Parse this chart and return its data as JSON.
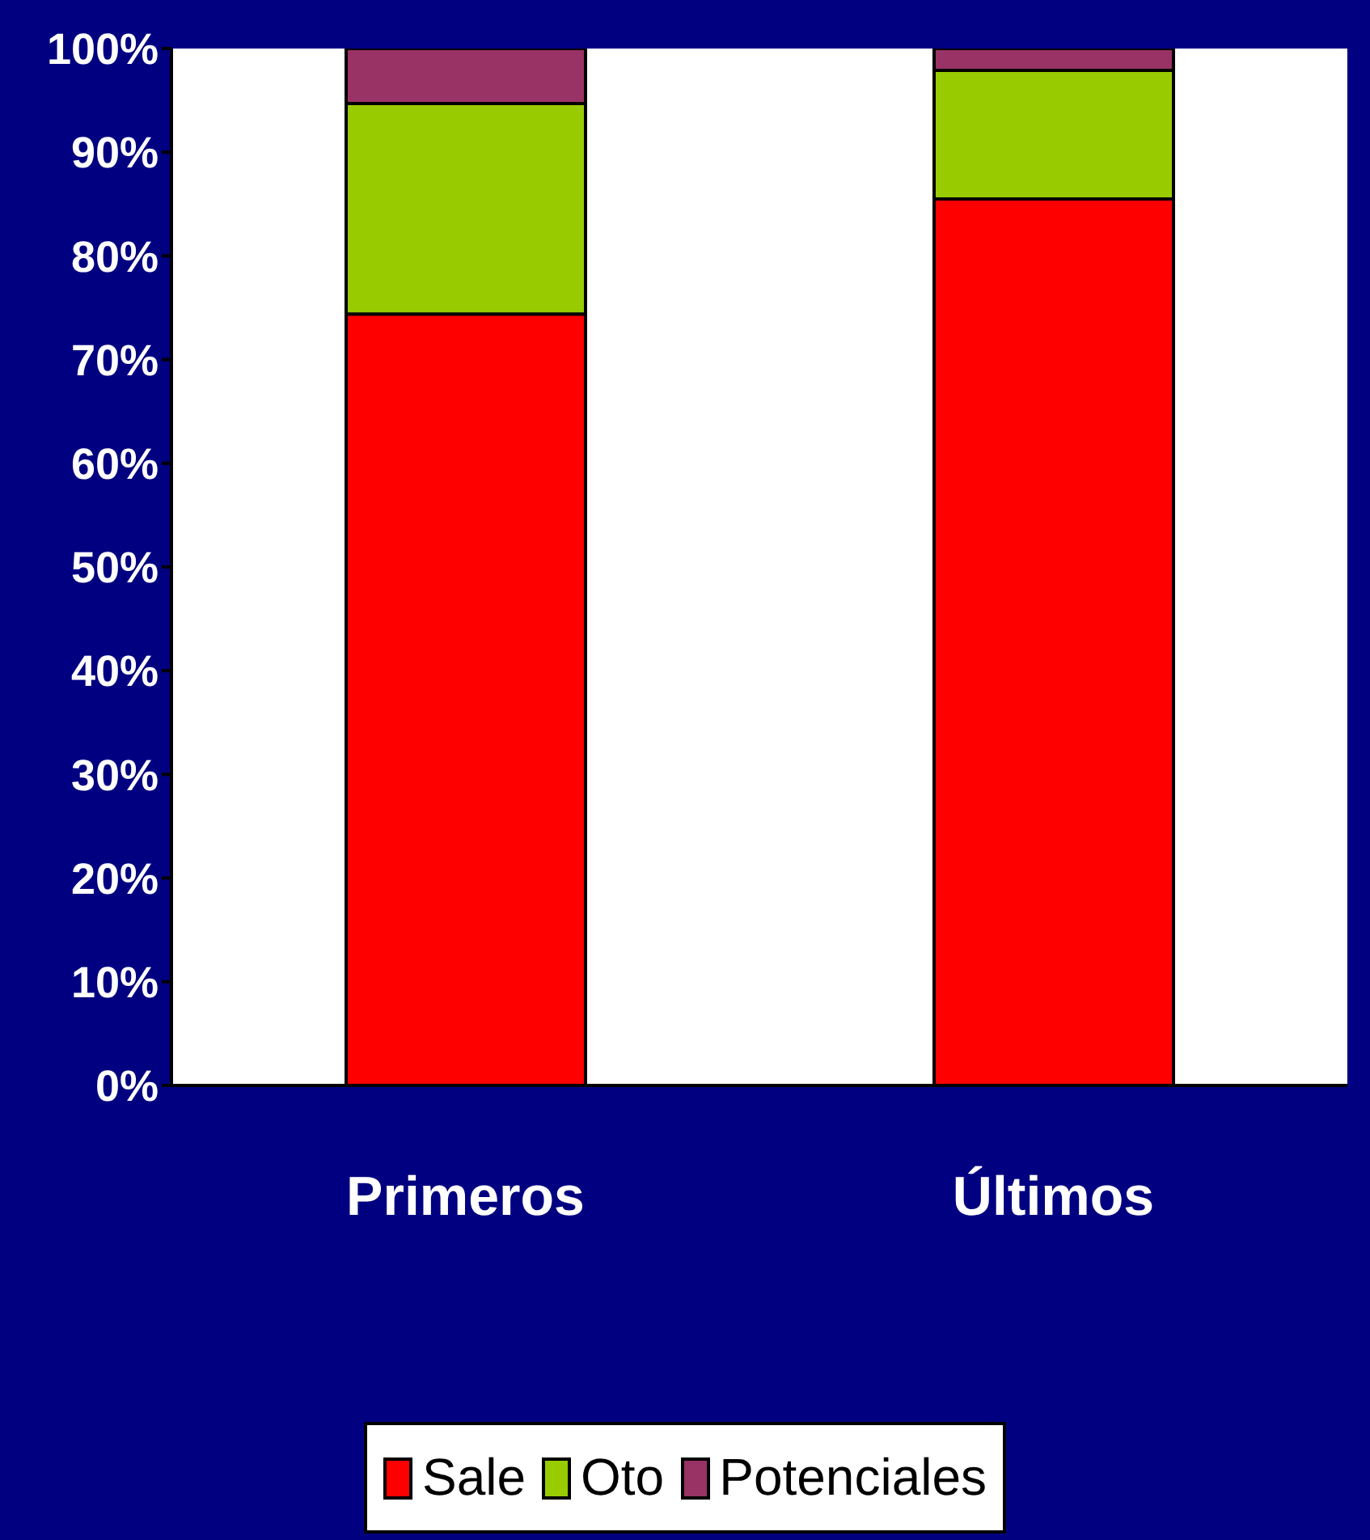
{
  "chart_data": {
    "type": "bar",
    "stacked": true,
    "categories": [
      "Primeros",
      "Últimos"
    ],
    "series": [
      {
        "name": "Sale",
        "color": "#ff0000",
        "values": [
          74.4,
          85.5
        ]
      },
      {
        "name": "Oto",
        "color": "#99cc00",
        "values": [
          20.3,
          12.4
        ]
      },
      {
        "name": "Potenciales",
        "color": "#993366",
        "values": [
          5.3,
          2.1
        ]
      }
    ],
    "ylim": [
      0,
      100
    ],
    "yticks": [
      {
        "value": 0,
        "label": "0%"
      },
      {
        "value": 10,
        "label": "10%"
      },
      {
        "value": 20,
        "label": "20%"
      },
      {
        "value": 30,
        "label": "30%"
      },
      {
        "value": 40,
        "label": "40%"
      },
      {
        "value": 50,
        "label": "50%"
      },
      {
        "value": 60,
        "label": "60%"
      },
      {
        "value": 70,
        "label": "70%"
      },
      {
        "value": 80,
        "label": "80%"
      },
      {
        "value": 90,
        "label": "90%"
      },
      {
        "value": 100,
        "label": "100%"
      }
    ],
    "legend": "bottom"
  }
}
